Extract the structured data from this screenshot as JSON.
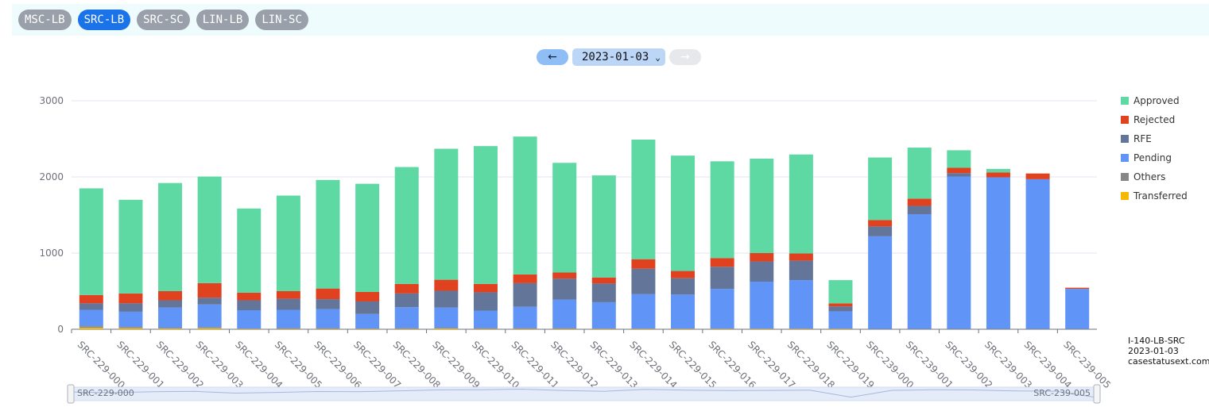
{
  "tabs": [
    {
      "label": "MSC-LB",
      "active": false
    },
    {
      "label": "SRC-LB",
      "active": true
    },
    {
      "label": "SRC-SC",
      "active": false
    },
    {
      "label": "LIN-LB",
      "active": false
    },
    {
      "label": "LIN-SC",
      "active": false
    }
  ],
  "date_nav": {
    "prev_icon": "arrow-left-icon",
    "prev_glyph": "←",
    "selected_date": "2023-01-03",
    "caret_glyph": "⌄",
    "next_icon": "arrow-right-icon",
    "next_glyph": "→"
  },
  "info": {
    "form": "I-140-LB-SRC",
    "date": "2023-01-03",
    "site": "casestatusext.com"
  },
  "colors": {
    "Approved": "#5fd9a4",
    "Rejected": "#e0421f",
    "RFE": "#64759a",
    "Pending": "#6095f7",
    "Others": "#878787",
    "Transferred": "#f5b700"
  },
  "chart_data": {
    "type": "bar",
    "stacked": true,
    "ylim": [
      0,
      3000
    ],
    "yticks": [
      0,
      1000,
      2000,
      3000
    ],
    "legend_position": "right",
    "categories": [
      "SRC-229-000",
      "SRC-229-001",
      "SRC-229-002",
      "SRC-229-003",
      "SRC-229-004",
      "SRC-229-005",
      "SRC-229-006",
      "SRC-229-007",
      "SRC-229-008",
      "SRC-229-009",
      "SRC-229-010",
      "SRC-229-011",
      "SRC-229-012",
      "SRC-229-013",
      "SRC-229-014",
      "SRC-229-015",
      "SRC-229-016",
      "SRC-229-017",
      "SRC-229-018",
      "SRC-229-019",
      "SRC-239-000",
      "SRC-239-001",
      "SRC-239-002",
      "SRC-239-003",
      "SRC-239-004",
      "SRC-239-005"
    ],
    "series": [
      {
        "name": "Transferred",
        "values": [
          20,
          15,
          10,
          15,
          5,
          5,
          5,
          5,
          5,
          10,
          5,
          5,
          5,
          5,
          5,
          5,
          5,
          5,
          5,
          5,
          0,
          0,
          0,
          0,
          0,
          0
        ]
      },
      {
        "name": "Others",
        "values": [
          20,
          15,
          10,
          10,
          5,
          10,
          10,
          5,
          10,
          10,
          10,
          10,
          10,
          5,
          5,
          5,
          5,
          5,
          5,
          5,
          5,
          5,
          5,
          5,
          5,
          5
        ]
      },
      {
        "name": "Pending",
        "values": [
          215,
          200,
          265,
          300,
          240,
          240,
          250,
          190,
          275,
          265,
          230,
          280,
          375,
          345,
          450,
          445,
          520,
          615,
          635,
          225,
          1215,
          1505,
          2000,
          1990,
          1965,
          525
        ]
      },
      {
        "name": "RFE",
        "values": [
          85,
          110,
          95,
          90,
          130,
          145,
          130,
          165,
          180,
          220,
          240,
          310,
          275,
          245,
          335,
          215,
          290,
          265,
          255,
          65,
          130,
          110,
          45,
          0,
          0,
          0
        ]
      },
      {
        "name": "Rejected",
        "values": [
          110,
          130,
          120,
          190,
          100,
          100,
          140,
          125,
          125,
          145,
          110,
          115,
          80,
          80,
          125,
          95,
          115,
          110,
          95,
          40,
          85,
          95,
          70,
          65,
          75,
          15
        ]
      },
      {
        "name": "Approved",
        "values": [
          1400,
          1230,
          1420,
          1400,
          1105,
          1255,
          1425,
          1420,
          1535,
          1720,
          1810,
          1810,
          1440,
          1340,
          1570,
          1515,
          1270,
          1240,
          1300,
          305,
          820,
          670,
          230,
          45,
          0,
          0
        ]
      }
    ],
    "legend": [
      "Approved",
      "Rejected",
      "RFE",
      "Pending",
      "Others",
      "Transferred"
    ],
    "zoom": {
      "start_label": "SRC-229-000",
      "end_label": "SRC-239-005"
    }
  }
}
